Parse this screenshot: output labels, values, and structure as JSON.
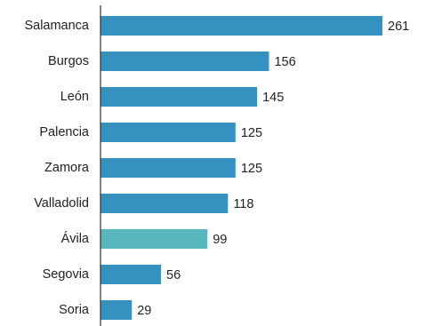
{
  "chart_data": {
    "type": "bar",
    "orientation": "horizontal",
    "categories": [
      "Salamanca",
      "Burgos",
      "León",
      "Palencia",
      "Zamora",
      "Valladolid",
      "Ávila",
      "Segovia",
      "Soria"
    ],
    "values": [
      261,
      156,
      145,
      125,
      125,
      118,
      99,
      56,
      29
    ],
    "value_labels": [
      "261",
      "156",
      "145",
      "125",
      "125",
      "118",
      "99",
      "56",
      "29"
    ],
    "bar_colors": [
      "#3592bf",
      "#3592bf",
      "#3592bf",
      "#3592bf",
      "#3592bf",
      "#3592bf",
      "#5ab6bd",
      "#3592bf",
      "#3592bf"
    ],
    "axis_color": "#333333",
    "grid": false,
    "legend": "none",
    "xlim": [
      0,
      261
    ]
  }
}
